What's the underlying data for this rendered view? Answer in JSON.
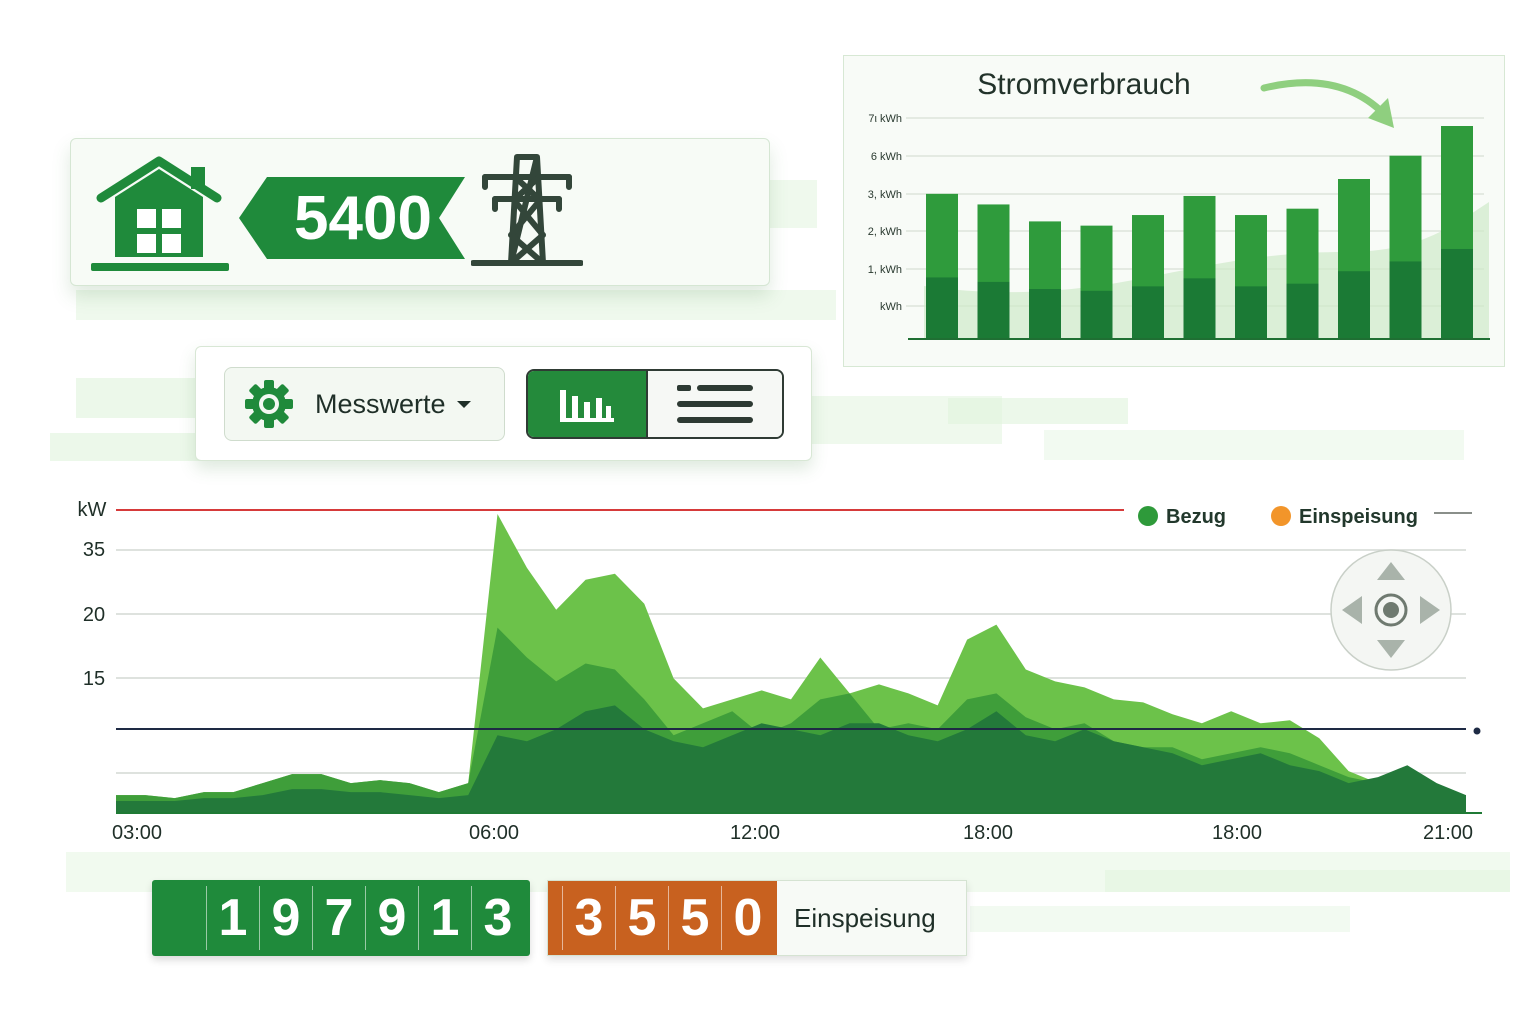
{
  "status": {
    "value": "5400"
  },
  "consumption": {
    "title": "Stromverbrauch",
    "y_ticks": [
      "7ι kWh",
      "6 kWh",
      "3, kWh",
      "2, kWh",
      "1, kWh",
      "kWh"
    ],
    "bar_levels": [
      0.68,
      0.63,
      0.55,
      0.53,
      0.58,
      0.67,
      0.58,
      0.61,
      0.75,
      0.86,
      1.0
    ]
  },
  "controls": {
    "measure_label": "Messwerte"
  },
  "chart_data": {
    "type": "area",
    "ylabel": "kW",
    "y_ticks": [
      "35",
      "20",
      "15"
    ],
    "x_ticks": [
      "03:00",
      "06:00",
      "12:00",
      "18:00",
      "18:00",
      "21:00"
    ],
    "legend": [
      {
        "name": "Bezug",
        "color": "#2e9a3a"
      },
      {
        "name": "Einspeisung",
        "color": "#f2952a"
      }
    ],
    "scale": "tick labels are not evenly spaced; series values are given as fraction of plot height",
    "limit_line_color": "#d63a3a",
    "reference_line_color": "#1e2a44",
    "series": [
      {
        "name": "layer-light",
        "color": "#6cc24a",
        "values": [
          0.06,
          0.06,
          0.05,
          0.07,
          0.07,
          0.1,
          0.13,
          0.13,
          0.1,
          0.11,
          0.1,
          0.07,
          0.1,
          1.0,
          0.82,
          0.68,
          0.78,
          0.8,
          0.7,
          0.45,
          0.35,
          0.38,
          0.41,
          0.38,
          0.52,
          0.4,
          0.43,
          0.4,
          0.36,
          0.58,
          0.63,
          0.48,
          0.44,
          0.42,
          0.38,
          0.37,
          0.33,
          0.3,
          0.34,
          0.3,
          0.31,
          0.25,
          0.14,
          0.1,
          0.14,
          0.07,
          0.06
        ]
      },
      {
        "name": "layer-mid",
        "color": "#3f9e3a",
        "values": [
          0.06,
          0.06,
          0.05,
          0.07,
          0.07,
          0.1,
          0.13,
          0.13,
          0.1,
          0.11,
          0.1,
          0.07,
          0.1,
          0.62,
          0.52,
          0.44,
          0.5,
          0.48,
          0.38,
          0.26,
          0.3,
          0.34,
          0.26,
          0.3,
          0.38,
          0.4,
          0.28,
          0.3,
          0.28,
          0.38,
          0.4,
          0.32,
          0.28,
          0.3,
          0.24,
          0.22,
          0.22,
          0.18,
          0.2,
          0.22,
          0.2,
          0.16,
          0.12,
          0.1,
          0.14,
          0.07,
          0.06
        ]
      },
      {
        "name": "layer-dark",
        "color": "#23793a",
        "values": [
          0.04,
          0.04,
          0.04,
          0.05,
          0.05,
          0.06,
          0.08,
          0.08,
          0.07,
          0.07,
          0.06,
          0.05,
          0.06,
          0.26,
          0.24,
          0.28,
          0.34,
          0.36,
          0.28,
          0.24,
          0.22,
          0.26,
          0.3,
          0.28,
          0.26,
          0.3,
          0.3,
          0.26,
          0.24,
          0.28,
          0.34,
          0.26,
          0.24,
          0.28,
          0.24,
          0.22,
          0.2,
          0.16,
          0.18,
          0.2,
          0.16,
          0.14,
          0.1,
          0.12,
          0.16,
          0.1,
          0.06
        ]
      }
    ]
  },
  "counters": {
    "consumption_digits": [
      "1",
      "9",
      "7",
      "9",
      "1",
      "3"
    ],
    "feedin_digits": [
      "3",
      "5",
      "5",
      "0"
    ],
    "feedin_label": "Einspeisung"
  }
}
